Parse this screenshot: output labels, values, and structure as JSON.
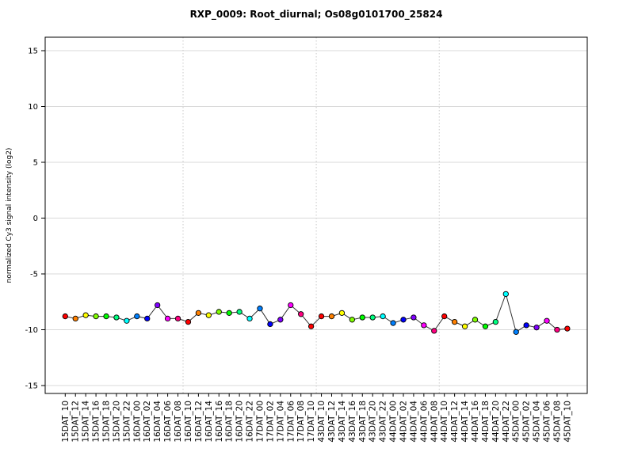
{
  "chart_data": {
    "type": "line",
    "title": "RXP_0009: Root_diurnal; Os08g0101700_25824",
    "xlabel": "",
    "ylabel": "normalized Cy3 signal intensity (log2)",
    "ylim": [
      -15.75,
      16.25
    ],
    "yticks": [
      15,
      10,
      5,
      0,
      -5,
      -10,
      -15
    ],
    "legend_position": "none",
    "grid": {
      "horizontal_style": "solid-light-gray",
      "vertical_style": "dotted-light-gray",
      "vertical_separator_indices": [
        11.5,
        24.5,
        36.5
      ]
    },
    "categories": [
      "15DAT_10",
      "15DAT_12",
      "15DAT_14",
      "15DAT_16",
      "15DAT_18",
      "15DAT_20",
      "15DAT_22",
      "16DAT_00",
      "16DAT_02",
      "16DAT_04",
      "16DAT_06",
      "16DAT_08",
      "16DAT_10",
      "16DAT_12",
      "16DAT_14",
      "16DAT_16",
      "16DAT_18",
      "16DAT_20",
      "16DAT_22",
      "17DAT_00",
      "17DAT_02",
      "17DAT_04",
      "17DAT_06",
      "17DAT_08",
      "17DAT_10",
      "43DAT_10",
      "43DAT_12",
      "43DAT_14",
      "43DAT_16",
      "43DAT_18",
      "43DAT_20",
      "43DAT_22",
      "44DAT_00",
      "44DAT_02",
      "44DAT_04",
      "44DAT_06",
      "44DAT_08",
      "44DAT_10",
      "44DAT_12",
      "44DAT_14",
      "44DAT_16",
      "44DAT_18",
      "44DAT_20",
      "44DAT_22",
      "45DAT_00",
      "45DAT_02",
      "45DAT_04",
      "45DAT_06",
      "45DAT_08",
      "45DAT_10"
    ],
    "values": [
      -8.8,
      -9.0,
      -8.7,
      -8.8,
      -8.8,
      -8.9,
      -9.2,
      -8.8,
      -9.0,
      -7.8,
      -9.0,
      -9.0,
      -9.3,
      -8.5,
      -8.7,
      -8.4,
      -8.5,
      -8.4,
      -9.0,
      -8.1,
      -9.5,
      -9.1,
      -7.8,
      -8.6,
      -9.7,
      -8.8,
      -8.8,
      -8.5,
      -9.1,
      -8.9,
      -8.9,
      -8.8,
      -9.4,
      -9.1,
      -8.9,
      -9.6,
      -10.1,
      -8.8,
      -9.3,
      -9.7,
      -9.1,
      -9.7,
      -9.3,
      -6.8,
      -10.2,
      -9.6,
      -9.8,
      -9.2,
      -10.0,
      -9.9
    ],
    "point_color_rule": "rainbow 12-color cycle keyed to hour of day, red at hour 10",
    "point_color_palette": [
      "#FF0000",
      "#FF8000",
      "#FFFF00",
      "#80FF00",
      "#00FF00",
      "#00FF80",
      "#00FFFF",
      "#0080FF",
      "#0000FF",
      "#8000FF",
      "#FF00FF",
      "#FF0080"
    ],
    "line_color": "#333333",
    "marker": {
      "shape": "filled-circle",
      "stroke": "#000000"
    },
    "gridline_color": "#d9d9d9",
    "separator_color": "#c9c9c9"
  }
}
